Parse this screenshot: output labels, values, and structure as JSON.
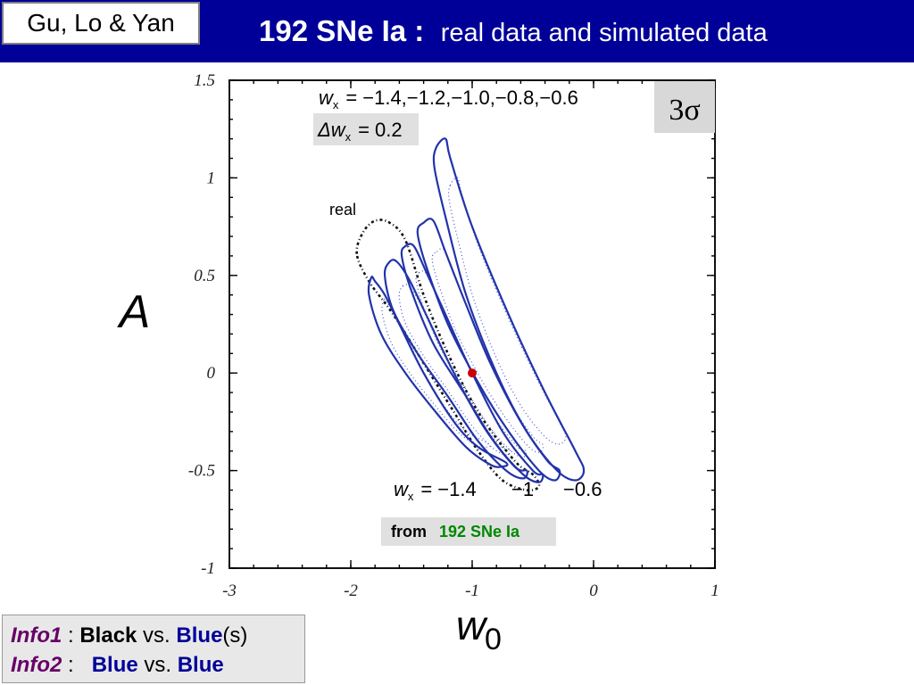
{
  "header": {
    "authors": "Gu, Lo & Yan",
    "title_main": "192 SNe Ia :",
    "title_sub": "real data and simulated data"
  },
  "chart_data": {
    "type": "contour",
    "xlabel": "w",
    "xlabel_sub": "0",
    "ylabel": "A",
    "xlim": [
      -3,
      1
    ],
    "ylim": [
      -1,
      1.5
    ],
    "x_ticks": [
      -3,
      -2,
      -1,
      0,
      1
    ],
    "x_tick_labels": [
      "-3",
      "-2",
      "-1",
      "0",
      "1"
    ],
    "y_ticks": [
      -1,
      -0.5,
      0,
      0.5,
      1,
      1.5
    ],
    "y_tick_labels": [
      "-1",
      "-0.5",
      "0",
      "0.5",
      "1",
      "1.5"
    ],
    "confidence_label": "3σ",
    "wx_values": [
      -1.4,
      -1.2,
      -1.0,
      -0.8,
      -0.6
    ],
    "annotations": {
      "wx_list_lhs": "w",
      "wx_list_sub": "x",
      "wx_list_eq": "=",
      "wx_list_values": "−1.4,−1.2,−1.0,−0.8,−0.6",
      "delta_lhs": "Δw",
      "delta_sub": "x",
      "delta_eq": "=",
      "delta_value": "0.2",
      "bottom_lhs": "w",
      "bottom_sub": "x",
      "bottom_eq": "=",
      "bottom_value": "−1.4",
      "mid_label": "−1",
      "right_label": "−0.6",
      "real_label": "real",
      "from_label": "from",
      "from_source": "192 SNe Ia"
    },
    "best_fit_point": {
      "w0": -1.0,
      "A": 0.0
    },
    "series": [
      {
        "name": "real",
        "style": "black dash-dot",
        "points": [
          [
            -1.95,
            0.61
          ],
          [
            -1.9,
            0.72
          ],
          [
            -1.8,
            0.78
          ],
          [
            -1.68,
            0.77
          ],
          [
            -1.55,
            0.68
          ],
          [
            -1.4,
            0.4
          ],
          [
            -1.2,
            0.1
          ],
          [
            -0.95,
            -0.2
          ],
          [
            -0.65,
            -0.45
          ],
          [
            -0.5,
            -0.52
          ],
          [
            -0.45,
            -0.58
          ],
          [
            -0.55,
            -0.6
          ],
          [
            -0.75,
            -0.55
          ],
          [
            -0.95,
            -0.4
          ],
          [
            -1.15,
            -0.2
          ],
          [
            -1.4,
            0.05
          ],
          [
            -1.65,
            0.3
          ],
          [
            -1.85,
            0.47
          ]
        ]
      },
      {
        "name": "wx=-1.4",
        "style": "blue",
        "points": [
          [
            -1.83,
            0.49
          ],
          [
            -1.8,
            0.47
          ],
          [
            -1.72,
            0.4
          ],
          [
            -1.6,
            0.25
          ],
          [
            -1.4,
            0.0
          ],
          [
            -1.15,
            -0.25
          ],
          [
            -0.95,
            -0.38
          ],
          [
            -0.72,
            -0.46
          ],
          [
            -0.76,
            -0.48
          ],
          [
            -0.85,
            -0.47
          ],
          [
            -1.05,
            -0.38
          ],
          [
            -1.3,
            -0.2
          ],
          [
            -1.55,
            0.0
          ],
          [
            -1.75,
            0.2
          ],
          [
            -1.85,
            0.4
          ]
        ]
      },
      {
        "name": "wx=-1.2",
        "style": "blue",
        "points": [
          [
            -1.68,
            0.57
          ],
          [
            -1.62,
            0.57
          ],
          [
            -1.52,
            0.48
          ],
          [
            -1.38,
            0.3
          ],
          [
            -1.15,
            0.0
          ],
          [
            -0.9,
            -0.28
          ],
          [
            -0.65,
            -0.48
          ],
          [
            -0.55,
            -0.5
          ],
          [
            -0.58,
            -0.54
          ],
          [
            -0.72,
            -0.5
          ],
          [
            -0.95,
            -0.35
          ],
          [
            -1.2,
            -0.12
          ],
          [
            -1.45,
            0.1
          ],
          [
            -1.65,
            0.32
          ],
          [
            -1.72,
            0.5
          ]
        ]
      },
      {
        "name": "wx=-1.0",
        "style": "blue",
        "points": [
          [
            -1.55,
            0.65
          ],
          [
            -1.48,
            0.65
          ],
          [
            -1.38,
            0.52
          ],
          [
            -1.22,
            0.3
          ],
          [
            -1.0,
            0.0
          ],
          [
            -0.75,
            -0.3
          ],
          [
            -0.5,
            -0.5
          ],
          [
            -0.42,
            -0.52
          ],
          [
            -0.45,
            -0.56
          ],
          [
            -0.58,
            -0.52
          ],
          [
            -0.82,
            -0.35
          ],
          [
            -1.07,
            -0.1
          ],
          [
            -1.32,
            0.15
          ],
          [
            -1.5,
            0.42
          ],
          [
            -1.58,
            0.6
          ]
        ]
      },
      {
        "name": "wx=-0.8",
        "style": "blue",
        "points": [
          [
            -1.4,
            0.77
          ],
          [
            -1.32,
            0.78
          ],
          [
            -1.22,
            0.62
          ],
          [
            -1.05,
            0.35
          ],
          [
            -0.85,
            0.05
          ],
          [
            -0.6,
            -0.25
          ],
          [
            -0.38,
            -0.45
          ],
          [
            -0.28,
            -0.5
          ],
          [
            -0.32,
            -0.55
          ],
          [
            -0.45,
            -0.5
          ],
          [
            -0.7,
            -0.3
          ],
          [
            -0.95,
            -0.05
          ],
          [
            -1.2,
            0.25
          ],
          [
            -1.38,
            0.55
          ],
          [
            -1.45,
            0.72
          ]
        ]
      },
      {
        "name": "wx=-0.6",
        "style": "blue",
        "points": [
          [
            -1.3,
            1.15
          ],
          [
            -1.22,
            1.2
          ],
          [
            -1.18,
            1.1
          ],
          [
            -1.0,
            0.75
          ],
          [
            -0.7,
            0.3
          ],
          [
            -0.4,
            -0.1
          ],
          [
            -0.15,
            -0.4
          ],
          [
            -0.08,
            -0.5
          ],
          [
            -0.15,
            -0.55
          ],
          [
            -0.3,
            -0.5
          ],
          [
            -0.55,
            -0.3
          ],
          [
            -0.8,
            0.0
          ],
          [
            -1.05,
            0.4
          ],
          [
            -1.22,
            0.8
          ],
          [
            -1.31,
            1.05
          ]
        ]
      }
    ]
  },
  "info": {
    "line1_key": "Info1",
    "line1_sep": " : ",
    "line1_black": "Black",
    "line1_vs": " vs. ",
    "line1_blue": "Blue",
    "line1_suffix": "(s)",
    "line2_key": "Info2",
    "line2_sep": " : ",
    "line2_blue_a": "Blue",
    "line2_vs": " vs. ",
    "line2_blue_b": "Blue"
  }
}
